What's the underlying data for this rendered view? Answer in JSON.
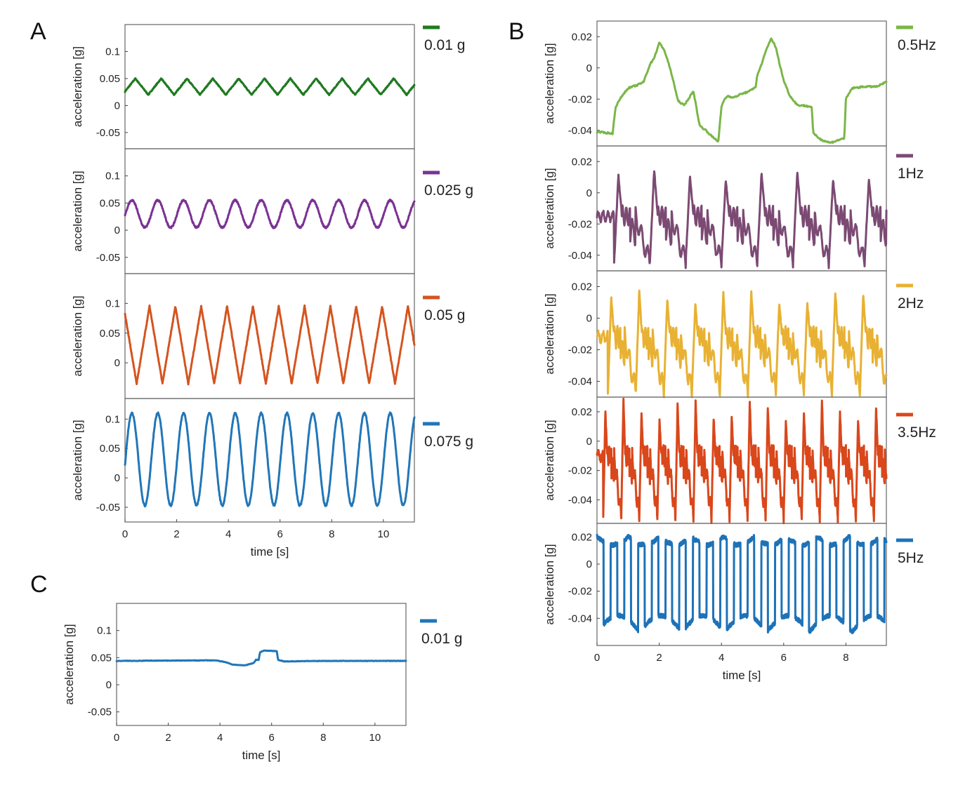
{
  "panel_labels": {
    "a": "A",
    "b": "B",
    "c": "C"
  },
  "colors": {
    "green": "#1f7a1f",
    "purple": "#7b3294",
    "orange": "#d4541f",
    "blue": "#2176b8",
    "lightgreen": "#7ab648",
    "mauve": "#7b4a73",
    "gold": "#e8b133",
    "red": "#d9471b",
    "blue2": "#1d72b8",
    "frame": "#666666"
  },
  "chart_data": [
    {
      "id": "A1",
      "type": "line",
      "legend": "0.01 g",
      "color": "green",
      "xlabel": "",
      "ylabel": "acceleration [g]",
      "xlim": [
        0,
        11.2
      ],
      "ylim": [
        -0.08,
        0.15
      ],
      "yticks": [
        0.1,
        0.05,
        0,
        -0.05
      ],
      "ytick_labels": [
        "0.1",
        "0.05",
        "0",
        "-0.05"
      ],
      "xticks": [],
      "xtick_labels": [],
      "signal": {
        "kind": "triangle",
        "period": 1.0,
        "min": 0.02,
        "max": 0.05,
        "phase": 0.1,
        "noise": 0.002,
        "x_end": 11.2,
        "dt": 0.01
      }
    },
    {
      "id": "A2",
      "type": "line",
      "legend": "0.025 g",
      "color": "purple",
      "xlabel": "",
      "ylabel": "acceleration [g]",
      "xlim": [
        0,
        11.2
      ],
      "ylim": [
        -0.08,
        0.15
      ],
      "yticks": [
        0.1,
        0.05,
        0,
        -0.05
      ],
      "ytick_labels": [
        "0.1",
        "0.05",
        "0",
        "-0.05"
      ],
      "xticks": [],
      "xtick_labels": [],
      "signal": {
        "kind": "sine",
        "period": 1.0,
        "min": 0.005,
        "max": 0.055,
        "phase": 0.0,
        "noise": 0.003,
        "x_end": 11.2,
        "dt": 0.01
      }
    },
    {
      "id": "A3",
      "type": "line",
      "legend": "0.05 g",
      "color": "orange",
      "xlabel": "",
      "ylabel": "acceleration [g]",
      "xlim": [
        0,
        11.2
      ],
      "ylim": [
        -0.06,
        0.15
      ],
      "yticks": [
        0.1,
        0.05,
        0
      ],
      "ytick_labels": [
        "0.1",
        "0.05",
        "0"
      ],
      "xticks": [],
      "xtick_labels": [],
      "signal": {
        "kind": "triangle",
        "period": 1.0,
        "min": -0.035,
        "max": 0.095,
        "phase": 0.55,
        "noise": 0.003,
        "x_end": 11.2,
        "dt": 0.01
      }
    },
    {
      "id": "A4",
      "type": "line",
      "legend": "0.075 g",
      "color": "blue",
      "xlabel": "time [s]",
      "ylabel": "acceleration [g]",
      "xlim": [
        0,
        11.2
      ],
      "ylim": [
        -0.075,
        0.135
      ],
      "yticks": [
        0.1,
        0.05,
        0,
        -0.05
      ],
      "ytick_labels": [
        "0.1",
        "0.05",
        "0",
        "-0.05"
      ],
      "xticks": [
        0,
        2,
        4,
        6,
        8,
        10
      ],
      "xtick_labels": [
        "0",
        "2",
        "4",
        "6",
        "8",
        "10"
      ],
      "signal": {
        "kind": "sine",
        "period": 1.0,
        "min": -0.047,
        "max": 0.11,
        "phase": 0.0,
        "noise": 0.003,
        "x_end": 11.2,
        "dt": 0.01
      }
    },
    {
      "id": "B1",
      "type": "line",
      "legend": "0.5Hz",
      "color": "lightgreen",
      "xlabel": "",
      "ylabel": "acceleration [g]",
      "xlim": [
        0,
        9.3
      ],
      "ylim": [
        -0.05,
        0.03
      ],
      "yticks": [
        0.02,
        0,
        -0.02,
        -0.04
      ],
      "ytick_labels": [
        "0.02",
        "0",
        "-0.02",
        "-0.04"
      ],
      "xticks": [],
      "xtick_labels": [],
      "signal": {
        "kind": "points",
        "noise": 0.001,
        "dt": 0.02,
        "points": [
          [
            0,
            -0.041
          ],
          [
            0.5,
            -0.042
          ],
          [
            0.6,
            -0.025
          ],
          [
            0.8,
            -0.018
          ],
          [
            1.0,
            -0.013
          ],
          [
            1.3,
            -0.011
          ],
          [
            1.5,
            -0.009
          ],
          [
            1.55,
            -0.006
          ],
          [
            1.7,
            0.002
          ],
          [
            1.85,
            0.007
          ],
          [
            2.0,
            0.016
          ],
          [
            2.15,
            0.012
          ],
          [
            2.3,
            0.003
          ],
          [
            2.45,
            -0.008
          ],
          [
            2.6,
            -0.021
          ],
          [
            2.8,
            -0.024
          ],
          [
            3.0,
            -0.018
          ],
          [
            3.1,
            -0.015
          ],
          [
            3.3,
            -0.037
          ],
          [
            3.5,
            -0.04
          ],
          [
            3.7,
            -0.044
          ],
          [
            3.9,
            -0.047
          ],
          [
            4.0,
            -0.025
          ],
          [
            4.1,
            -0.02
          ],
          [
            4.2,
            -0.018
          ],
          [
            4.4,
            -0.019
          ],
          [
            4.6,
            -0.017
          ],
          [
            4.9,
            -0.015
          ],
          [
            5.1,
            -0.012
          ],
          [
            5.15,
            -0.005
          ],
          [
            5.3,
            0.003
          ],
          [
            5.45,
            0.012
          ],
          [
            5.6,
            0.019
          ],
          [
            5.75,
            0.013
          ],
          [
            5.85,
            0.004
          ],
          [
            6.0,
            -0.008
          ],
          [
            6.2,
            -0.018
          ],
          [
            6.45,
            -0.024
          ],
          [
            6.6,
            -0.024
          ],
          [
            6.9,
            -0.025
          ],
          [
            6.95,
            -0.042
          ],
          [
            7.2,
            -0.046
          ],
          [
            7.5,
            -0.048
          ],
          [
            7.8,
            -0.046
          ],
          [
            7.95,
            -0.045
          ],
          [
            8.0,
            -0.02
          ],
          [
            8.2,
            -0.013
          ],
          [
            8.6,
            -0.012
          ],
          [
            9.0,
            -0.012
          ],
          [
            9.3,
            -0.009
          ]
        ]
      }
    },
    {
      "id": "B2",
      "type": "line",
      "legend": "1Hz",
      "color": "mauve",
      "xlabel": "",
      "ylabel": "acceleration [g]",
      "xlim": [
        0,
        9.3
      ],
      "ylim": [
        -0.05,
        0.03
      ],
      "yticks": [
        0.02,
        0,
        -0.02,
        -0.04
      ],
      "ytick_labels": [
        "0.02",
        "0",
        "-0.02",
        "-0.04"
      ],
      "xticks": [],
      "xtick_labels": [],
      "signal": {
        "kind": "burst",
        "period": 1.15,
        "start": 0.55,
        "min": -0.045,
        "max": 0.015,
        "base": -0.015,
        "noise": 0.002,
        "x_end": 9.3,
        "dt": 0.01
      }
    },
    {
      "id": "B3",
      "type": "line",
      "legend": "2Hz",
      "color": "gold",
      "xlabel": "",
      "ylabel": "acceleration [g]",
      "xlim": [
        0,
        9.3
      ],
      "ylim": [
        -0.05,
        0.03
      ],
      "yticks": [
        0.02,
        0,
        -0.02,
        -0.04
      ],
      "ytick_labels": [
        "0.02",
        "0",
        "-0.02",
        "-0.04"
      ],
      "xticks": [],
      "xtick_labels": [],
      "signal": {
        "kind": "burst",
        "period": 0.9,
        "start": 0.35,
        "min": -0.047,
        "max": 0.018,
        "base": -0.012,
        "noise": 0.003,
        "x_end": 9.3,
        "dt": 0.01
      }
    },
    {
      "id": "B4",
      "type": "line",
      "legend": "3.5Hz",
      "color": "red",
      "xlabel": "",
      "ylabel": "acceleration [g]",
      "xlim": [
        0,
        9.3
      ],
      "ylim": [
        -0.056,
        0.03
      ],
      "yticks": [
        0.02,
        0,
        -0.02,
        -0.04
      ],
      "ytick_labels": [
        "0.02",
        "0",
        "-0.02",
        "-0.04"
      ],
      "xticks": [],
      "xtick_labels": [],
      "signal": {
        "kind": "burst",
        "period": 0.58,
        "start": 0.2,
        "min": -0.052,
        "max": 0.028,
        "base": -0.01,
        "noise": 0.003,
        "x_end": 9.3,
        "dt": 0.005
      }
    },
    {
      "id": "B5",
      "type": "line",
      "legend": "5Hz",
      "color": "blue2",
      "xlabel": "time [s]",
      "ylabel": "acceleration [g]",
      "xlim": [
        0,
        9.3
      ],
      "ylim": [
        -0.06,
        0.03
      ],
      "yticks": [
        0.02,
        0,
        -0.02,
        -0.04
      ],
      "ytick_labels": [
        "0.02",
        "0",
        "-0.02",
        "-0.04"
      ],
      "xticks": [
        0,
        2,
        4,
        6,
        8
      ],
      "xtick_labels": [
        "0",
        "2",
        "4",
        "6",
        "8"
      ],
      "signal": {
        "kind": "square",
        "period": 0.44,
        "min": -0.05,
        "max": 0.022,
        "noise": 0.003,
        "x_end": 9.3,
        "dt": 0.005
      }
    },
    {
      "id": "C",
      "type": "line",
      "legend": "0.01 g",
      "color": "blue",
      "xlabel": "time [s]",
      "ylabel": "acceleration [g]",
      "xlim": [
        0,
        11.2
      ],
      "ylim": [
        -0.075,
        0.15
      ],
      "yticks": [
        0.1,
        0.05,
        0,
        -0.05
      ],
      "ytick_labels": [
        "0.1",
        "0.05",
        "0",
        "-0.05"
      ],
      "xticks": [
        0,
        2,
        4,
        6,
        8,
        10
      ],
      "xtick_labels": [
        "0",
        "2",
        "4",
        "6",
        "8",
        "10"
      ],
      "signal": {
        "kind": "points",
        "noise": 0.0008,
        "dt": 0.02,
        "points": [
          [
            0,
            0.044
          ],
          [
            3.8,
            0.045
          ],
          [
            4.2,
            0.042
          ],
          [
            4.5,
            0.037
          ],
          [
            5.0,
            0.036
          ],
          [
            5.3,
            0.04
          ],
          [
            5.4,
            0.046
          ],
          [
            5.5,
            0.046
          ],
          [
            5.55,
            0.06
          ],
          [
            5.7,
            0.063
          ],
          [
            6.2,
            0.062
          ],
          [
            6.25,
            0.046
          ],
          [
            6.5,
            0.043
          ],
          [
            8,
            0.044
          ],
          [
            11.2,
            0.044
          ]
        ]
      }
    }
  ]
}
